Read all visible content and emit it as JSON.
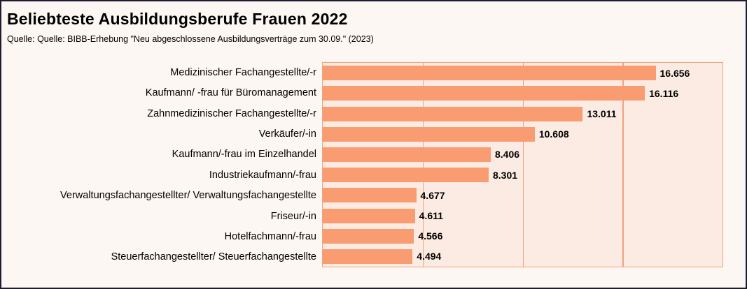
{
  "chart_data": {
    "type": "bar",
    "orientation": "horizontal",
    "title": "Beliebteste Ausbildungsberufe Frauen 2022",
    "subtitle": "Quelle: Quelle: BIBB-Erhebung \"Neu abgeschlossene Ausbildungsverträge zum 30.09.\" (2023)",
    "categories": [
      "Medizinischer Fachangestellte/-r",
      "Kaufmann/ -frau für Büromanagement",
      "Zahnmedizinischer Fachangestellte/-r",
      "Verkäufer/-in",
      "Kaufmann/-frau im Einzelhandel",
      "Industriekaufmann/-frau",
      "Verwaltungsfachangestellter/ Verwaltungsfachangestellte",
      "Friseur/-in",
      "Hotelfachmann/-frau",
      "Steuerfachangestellter/ Steuerfachangestellte"
    ],
    "values": [
      16656,
      16116,
      13011,
      10608,
      8406,
      8301,
      4677,
      4611,
      4566,
      4494
    ],
    "value_labels": [
      "16.656",
      "16.116",
      "13.011",
      "10.608",
      "8.406",
      "8.301",
      "4.677",
      "4.611",
      "4.566",
      "4.494"
    ],
    "xlabel": "",
    "ylabel": "",
    "xlim": [
      0,
      20000
    ],
    "gridlines_x": [
      5000,
      10000,
      15000
    ],
    "grid": true,
    "legend": false,
    "value_labels_shown": true
  },
  "colors": {
    "bar": "#f99c72",
    "plot_background": "#fcebe2",
    "plot_border": "#f1a27d",
    "gridline": "#f1a27d",
    "page_background": "#fdf7f3",
    "frame_border": "#1c1d33",
    "text": "#000000"
  }
}
